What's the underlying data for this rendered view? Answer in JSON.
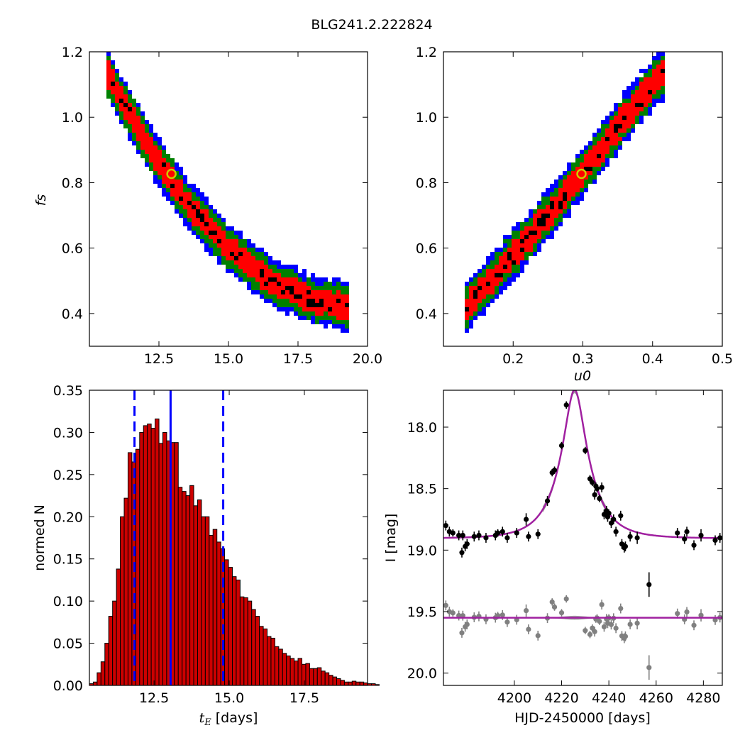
{
  "figure_title": "BLG241.2.222824",
  "chart_data": [
    {
      "type": "heatmap",
      "panel": "top-left",
      "ylabel": "f_s",
      "xlim": [
        10.0,
        20.0
      ],
      "ylim": [
        0.3,
        1.2
      ],
      "xticks": [
        "12.5",
        "15.0",
        "17.5",
        "20.0"
      ],
      "yticks": [
        "0.4",
        "0.6",
        "0.8",
        "1.0",
        "1.2"
      ],
      "colors": {
        "level1": "#ff0000",
        "level2": "#008000",
        "level3": "#0000ff",
        "best": "#000000",
        "marker": "#cccc00"
      },
      "ridge": [
        [
          10.6,
          1.14
        ],
        [
          11.5,
          1.0
        ],
        [
          12.5,
          0.86
        ],
        [
          13.5,
          0.74
        ],
        [
          15.0,
          0.6
        ],
        [
          16.5,
          0.5
        ],
        [
          18.0,
          0.44
        ],
        [
          19.4,
          0.42
        ]
      ],
      "best_fit": {
        "x": 12.95,
        "y": 0.827
      }
    },
    {
      "type": "heatmap",
      "panel": "top-right",
      "xlabel": "u_0",
      "xlim": [
        0.1,
        0.5
      ],
      "ylim": [
        0.3,
        1.2
      ],
      "xticks": [
        "0.2",
        "0.3",
        "0.4",
        "0.5"
      ],
      "yticks": [
        "0.4",
        "0.6",
        "0.8",
        "1.0",
        "1.2"
      ],
      "colors": {
        "level1": "#ff0000",
        "level2": "#008000",
        "level3": "#0000ff",
        "best": "#000000",
        "marker": "#cccc00"
      },
      "ridge": [
        [
          0.13,
          0.41
        ],
        [
          0.2,
          0.58
        ],
        [
          0.25,
          0.7
        ],
        [
          0.3,
          0.83
        ],
        [
          0.35,
          0.97
        ],
        [
          0.4,
          1.1
        ],
        [
          0.42,
          1.14
        ]
      ],
      "best_fit": {
        "x": 0.298,
        "y": 0.827
      }
    },
    {
      "type": "bar",
      "panel": "bottom-left",
      "xlabel": "t_E [days]",
      "ylabel": "normed N",
      "xlim": [
        10.35,
        19.6
      ],
      "ylim": [
        0.0,
        0.35
      ],
      "xticks": [
        "12.5",
        "15.0",
        "17.5"
      ],
      "yticks": [
        "0.00",
        "0.05",
        "0.10",
        "0.15",
        "0.20",
        "0.25",
        "0.30",
        "0.35"
      ],
      "bin_start": 10.35,
      "bin_width": 0.1285,
      "values": [
        0.002,
        0.004,
        0.015,
        0.028,
        0.05,
        0.082,
        0.1,
        0.138,
        0.2,
        0.222,
        0.276,
        0.265,
        0.28,
        0.3,
        0.308,
        0.31,
        0.305,
        0.316,
        0.287,
        0.3,
        0.29,
        0.288,
        0.288,
        0.235,
        0.23,
        0.225,
        0.237,
        0.213,
        0.22,
        0.2,
        0.2,
        0.178,
        0.185,
        0.17,
        0.162,
        0.149,
        0.14,
        0.129,
        0.125,
        0.105,
        0.104,
        0.1,
        0.09,
        0.082,
        0.07,
        0.067,
        0.058,
        0.056,
        0.046,
        0.043,
        0.038,
        0.035,
        0.032,
        0.029,
        0.032,
        0.025,
        0.026,
        0.02,
        0.02,
        0.021,
        0.017,
        0.015,
        0.012,
        0.01,
        0.008,
        0.006,
        0.004,
        0.004,
        0.005,
        0.004,
        0.004,
        0.003,
        0.002,
        0.002,
        0.001
      ],
      "bar_color": "#cc0000",
      "median": 13.05,
      "bounds": [
        11.85,
        14.8
      ],
      "line_color": "#0000ff"
    },
    {
      "type": "scatter",
      "panel": "bottom-right",
      "xlabel": "HJD-2450000 [days]",
      "ylabel": "I [mag]",
      "xlim": [
        4170,
        4288
      ],
      "ylim": [
        20.1,
        17.7
      ],
      "y_inverted": true,
      "xticks": [
        "4200",
        "4220",
        "4240",
        "4260",
        "4280"
      ],
      "yticks": [
        "18.0",
        "18.5",
        "19.0",
        "19.5",
        "20.0"
      ],
      "model": {
        "t0": 4225.5,
        "tE": 13.05,
        "u0": 0.298,
        "fs": 0.827,
        "baseline": 18.905,
        "color": "#a020a0"
      },
      "residual_baseline": 19.55,
      "residual_model_color": "#a020a0",
      "data_color": "#000000",
      "residual_color": "#808080",
      "points": [
        [
          4171,
          18.8,
          0.04
        ],
        [
          4172.5,
          18.85,
          0.04
        ],
        [
          4174,
          18.86,
          0.03
        ],
        [
          4176.5,
          18.88,
          0.04
        ],
        [
          4177.8,
          19.02,
          0.04
        ],
        [
          4178.2,
          18.88,
          0.04
        ],
        [
          4179.2,
          18.97,
          0.04
        ],
        [
          4180,
          18.95,
          0.04
        ],
        [
          4183,
          18.89,
          0.04
        ],
        [
          4185,
          18.88,
          0.04
        ],
        [
          4188,
          18.9,
          0.04
        ],
        [
          4192,
          18.88,
          0.04
        ],
        [
          4193,
          18.86,
          0.03
        ],
        [
          4195,
          18.85,
          0.04
        ],
        [
          4197,
          18.9,
          0.04
        ],
        [
          4201,
          18.86,
          0.04
        ],
        [
          4205,
          18.75,
          0.05
        ],
        [
          4206,
          18.89,
          0.04
        ],
        [
          4210,
          18.87,
          0.04
        ],
        [
          4214,
          18.6,
          0.04
        ],
        [
          4216,
          18.37,
          0.03
        ],
        [
          4217,
          18.35,
          0.03
        ],
        [
          4220,
          18.15,
          0.03
        ],
        [
          4222,
          17.82,
          0.03
        ],
        [
          4230,
          18.19,
          0.03
        ],
        [
          4232,
          18.42,
          0.03
        ],
        [
          4233,
          18.45,
          0.03
        ],
        [
          4234,
          18.55,
          0.04
        ],
        [
          4234.5,
          18.48,
          0.03
        ],
        [
          4235,
          18.5,
          0.03
        ],
        [
          4236,
          18.58,
          0.03
        ],
        [
          4237,
          18.49,
          0.04
        ],
        [
          4238,
          18.71,
          0.04
        ],
        [
          4239,
          18.68,
          0.04
        ],
        [
          4239.5,
          18.73,
          0.04
        ],
        [
          4240,
          18.7,
          0.03
        ],
        [
          4241,
          18.78,
          0.04
        ],
        [
          4242,
          18.75,
          0.04
        ],
        [
          4243,
          18.85,
          0.04
        ],
        [
          4245,
          18.72,
          0.04
        ],
        [
          4245.5,
          18.95,
          0.04
        ],
        [
          4246.5,
          18.98,
          0.04
        ],
        [
          4247,
          18.97,
          0.04
        ],
        [
          4249,
          18.89,
          0.04
        ],
        [
          4252,
          18.9,
          0.05
        ],
        [
          4257,
          19.28,
          0.1
        ],
        [
          4269,
          18.86,
          0.04
        ],
        [
          4272,
          18.91,
          0.04
        ],
        [
          4273,
          18.85,
          0.04
        ],
        [
          4276,
          18.96,
          0.04
        ],
        [
          4279,
          18.88,
          0.05
        ],
        [
          4285,
          18.92,
          0.04
        ],
        [
          4287,
          18.9,
          0.04
        ]
      ]
    }
  ]
}
